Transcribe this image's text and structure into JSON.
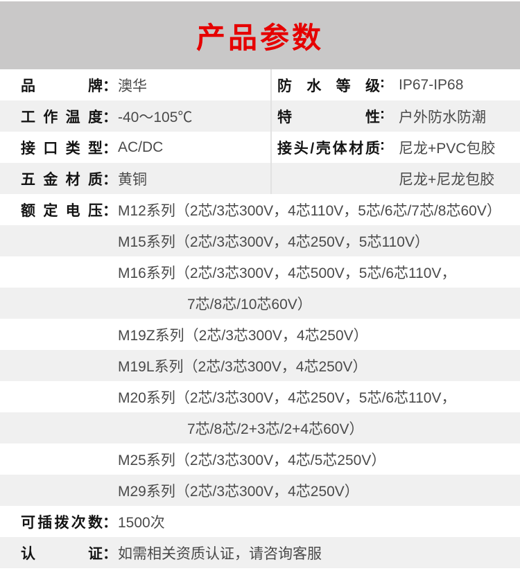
{
  "header": {
    "title": "产品参数"
  },
  "colors": {
    "accent_red": "#e60000",
    "header_bg": "#c9c8c8",
    "row_alt_bg": "#f0f0f0",
    "label_color": "#141414",
    "value_color": "#4a4a4a",
    "divider": "#e2e2e2"
  },
  "spec_rows": [
    {
      "left": {
        "label": "品牌：",
        "value": "澳华"
      },
      "right": {
        "label": "防水等级:",
        "value": "IP67-IP68"
      }
    },
    {
      "left": {
        "label": "工作温度：",
        "value": "-40～105℃"
      },
      "right": {
        "label": "特性:",
        "value": "户外防水防潮"
      }
    },
    {
      "left": {
        "label": "接口类型：",
        "value": "AC/DC"
      },
      "right": {
        "label": "接头/壳体材质:",
        "value": "尼龙+PVC包胶"
      }
    },
    {
      "left": {
        "label": "五金材质：",
        "value": "黄铜"
      },
      "right": {
        "label": "",
        "value": "尼龙+尼龙包胶"
      }
    }
  ],
  "voltage": {
    "label": "额定电压：",
    "lines": [
      {
        "text": "M12系列（2芯/3芯300V，4芯110V，5芯/6芯/7芯/8芯60V）",
        "indent": "value"
      },
      {
        "text": "M15系列（2芯/3芯300V，4芯250V，5芯110V）",
        "indent": "value"
      },
      {
        "text": "M16系列（2芯/3芯300V，4芯500V，5芯/6芯110V，",
        "indent": "value"
      },
      {
        "text": "7芯/8芯/10芯60V）",
        "indent": "deep"
      },
      {
        "text": "M19Z系列（2芯/3芯300V，4芯250V）",
        "indent": "value"
      },
      {
        "text": "M19L系列（2芯/3芯300V，4芯250V）",
        "indent": "value"
      },
      {
        "text": "M20系列（2芯/3芯300V，4芯250V，5芯/6芯110V，",
        "indent": "value"
      },
      {
        "text": "7芯/8芯/2+3芯/2+4芯60V）",
        "indent": "deep"
      },
      {
        "text": "M25系列（2芯/3芯300V，4芯/5芯250V）",
        "indent": "value"
      },
      {
        "text": "M29系列（2芯/3芯300V，4芯250V）",
        "indent": "value"
      }
    ]
  },
  "footer_rows": [
    {
      "label": "可插拨次数：",
      "value": "1500次"
    },
    {
      "label": "认证：",
      "value": "如需相关资质认证，请咨询客服"
    }
  ]
}
